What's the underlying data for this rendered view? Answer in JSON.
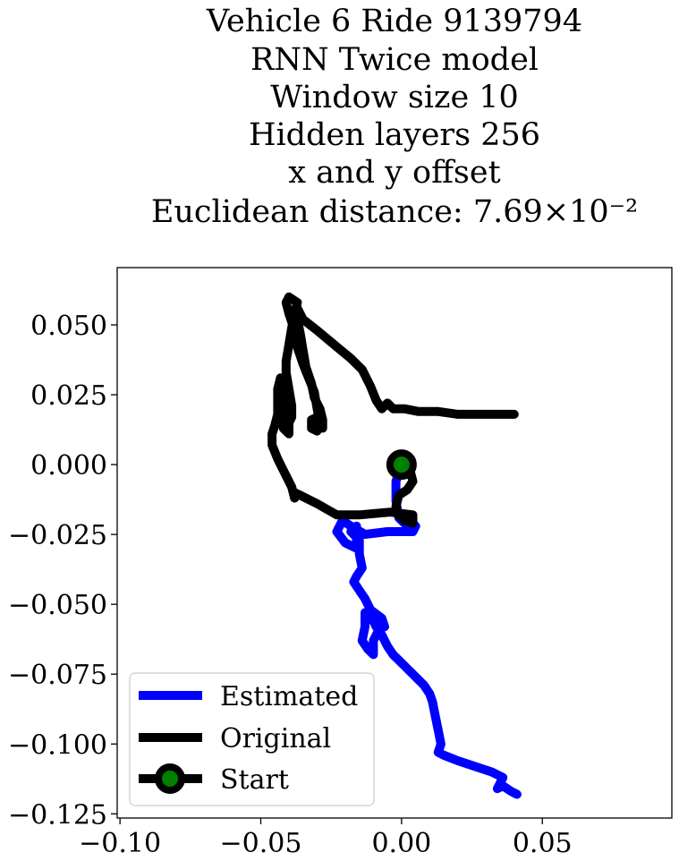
{
  "chart_data": {
    "type": "line",
    "title_lines": [
      "Vehicle 6 Ride 9139794",
      "RNN Twice model",
      "Window size 10",
      "Hidden layers 256",
      "x and y offset",
      "Euclidean distance: 7.69×10⁻²"
    ],
    "xlim": [
      -0.101,
      0.096
    ],
    "ylim": [
      -0.1265,
      0.0705
    ],
    "x_ticks": [
      -0.1,
      -0.05,
      0.0,
      0.05
    ],
    "x_tick_labels": [
      "−0.10",
      "−0.05",
      "0.00",
      "0.05"
    ],
    "y_ticks": [
      0.05,
      0.025,
      0.0,
      -0.025,
      -0.05,
      -0.075,
      -0.1,
      -0.125
    ],
    "y_tick_labels": [
      "0.050",
      "0.025",
      "0.000",
      "−0.025",
      "−0.050",
      "−0.075",
      "−0.100",
      "−0.125"
    ],
    "grid": false,
    "legend_position": "lower-left",
    "series": [
      {
        "name": "Estimated",
        "color": "#0000ff",
        "points": [
          [
            0.0,
            0.0
          ],
          [
            -0.002,
            -0.006
          ],
          [
            -0.002,
            -0.013
          ],
          [
            -0.001,
            -0.019
          ],
          [
            0.001,
            -0.021
          ],
          [
            0.004,
            -0.021
          ],
          [
            0.005,
            -0.022
          ],
          [
            0.004,
            -0.024
          ],
          [
            -0.005,
            -0.024
          ],
          [
            -0.013,
            -0.025
          ],
          [
            -0.018,
            -0.022
          ],
          [
            -0.021,
            -0.02
          ],
          [
            -0.023,
            -0.024
          ],
          [
            -0.02,
            -0.028
          ],
          [
            -0.016,
            -0.03
          ],
          [
            -0.016,
            -0.022
          ],
          [
            -0.018,
            -0.024
          ],
          [
            -0.015,
            -0.027
          ],
          [
            -0.015,
            -0.032
          ],
          [
            -0.014,
            -0.037
          ],
          [
            -0.016,
            -0.04
          ],
          [
            -0.017,
            -0.042
          ],
          [
            -0.015,
            -0.045
          ],
          [
            -0.013,
            -0.048
          ],
          [
            -0.011,
            -0.052
          ],
          [
            -0.007,
            -0.055
          ],
          [
            -0.006,
            -0.058
          ],
          [
            -0.008,
            -0.059
          ],
          [
            -0.01,
            -0.063
          ],
          [
            -0.01,
            -0.068
          ],
          [
            -0.012,
            -0.066
          ],
          [
            -0.014,
            -0.063
          ],
          [
            -0.013,
            -0.058
          ],
          [
            -0.013,
            -0.053
          ],
          [
            -0.011,
            -0.054
          ],
          [
            -0.009,
            -0.058
          ],
          [
            -0.007,
            -0.061
          ],
          [
            -0.005,
            -0.065
          ],
          [
            -0.003,
            -0.068
          ],
          [
            -0.001,
            -0.07
          ],
          [
            0.002,
            -0.073
          ],
          [
            0.005,
            -0.076
          ],
          [
            0.008,
            -0.079
          ],
          [
            0.01,
            -0.082
          ],
          [
            0.011,
            -0.085
          ],
          [
            0.012,
            -0.09
          ],
          [
            0.013,
            -0.095
          ],
          [
            0.014,
            -0.1
          ],
          [
            0.013,
            -0.103
          ],
          [
            0.015,
            -0.104
          ],
          [
            0.02,
            -0.106
          ],
          [
            0.026,
            -0.108
          ],
          [
            0.032,
            -0.11
          ],
          [
            0.036,
            -0.112
          ],
          [
            0.034,
            -0.116
          ],
          [
            0.036,
            -0.115
          ],
          [
            0.039,
            -0.117
          ],
          [
            0.041,
            -0.118
          ]
        ]
      },
      {
        "name": "Original",
        "color": "#000000",
        "points": [
          [
            0.0,
            0.0
          ],
          [
            0.003,
            -0.002
          ],
          [
            0.004,
            -0.006
          ],
          [
            0.002,
            -0.009
          ],
          [
            -0.001,
            -0.011
          ],
          [
            -0.002,
            -0.015
          ],
          [
            -0.001,
            -0.018
          ],
          [
            0.001,
            -0.02
          ],
          [
            0.004,
            -0.021
          ],
          [
            0.004,
            -0.018
          ],
          [
            -0.004,
            -0.017
          ],
          [
            -0.015,
            -0.018
          ],
          [
            -0.023,
            -0.018
          ],
          [
            -0.03,
            -0.014
          ],
          [
            -0.036,
            -0.011
          ],
          [
            -0.038,
            -0.01
          ],
          [
            -0.038,
            -0.012
          ],
          [
            -0.039,
            -0.008
          ],
          [
            -0.041,
            -0.004
          ],
          [
            -0.044,
            0.002
          ],
          [
            -0.046,
            0.007
          ],
          [
            -0.046,
            0.011
          ],
          [
            -0.045,
            0.014
          ],
          [
            -0.044,
            0.018
          ],
          [
            -0.044,
            0.022
          ],
          [
            -0.044,
            0.027
          ],
          [
            -0.043,
            0.031
          ],
          [
            -0.042,
            0.026
          ],
          [
            -0.041,
            0.021
          ],
          [
            -0.042,
            0.016
          ],
          [
            -0.042,
            0.013
          ],
          [
            -0.04,
            0.011
          ],
          [
            -0.04,
            0.015
          ],
          [
            -0.039,
            0.017
          ],
          [
            -0.039,
            0.021
          ],
          [
            -0.04,
            0.027
          ],
          [
            -0.041,
            0.033
          ],
          [
            -0.041,
            0.037
          ],
          [
            -0.04,
            0.043
          ],
          [
            -0.039,
            0.049
          ],
          [
            -0.038,
            0.054
          ],
          [
            -0.037,
            0.058
          ],
          [
            -0.04,
            0.06
          ],
          [
            -0.041,
            0.058
          ],
          [
            -0.04,
            0.054
          ],
          [
            -0.038,
            0.048
          ],
          [
            -0.037,
            0.042
          ],
          [
            -0.035,
            0.036
          ],
          [
            -0.033,
            0.031
          ],
          [
            -0.031,
            0.026
          ],
          [
            -0.03,
            0.02
          ],
          [
            -0.029,
            0.015
          ],
          [
            -0.03,
            0.012
          ],
          [
            -0.032,
            0.013
          ],
          [
            -0.032,
            0.016
          ],
          [
            -0.03,
            0.017
          ],
          [
            -0.029,
            0.014
          ],
          [
            -0.028,
            0.013
          ],
          [
            -0.028,
            0.016
          ],
          [
            -0.029,
            0.02
          ],
          [
            -0.031,
            0.024
          ],
          [
            -0.032,
            0.029
          ],
          [
            -0.034,
            0.035
          ],
          [
            -0.035,
            0.041
          ],
          [
            -0.036,
            0.047
          ],
          [
            -0.037,
            0.052
          ],
          [
            -0.037,
            0.056
          ],
          [
            -0.035,
            0.052
          ],
          [
            -0.03,
            0.048
          ],
          [
            -0.024,
            0.043
          ],
          [
            -0.018,
            0.038
          ],
          [
            -0.014,
            0.034
          ],
          [
            -0.011,
            0.028
          ],
          [
            -0.009,
            0.023
          ],
          [
            -0.007,
            0.02
          ],
          [
            -0.005,
            0.022
          ],
          [
            -0.004,
            0.021
          ],
          [
            -0.003,
            0.02
          ],
          [
            0.001,
            0.02
          ],
          [
            0.006,
            0.019
          ],
          [
            0.013,
            0.019
          ],
          [
            0.02,
            0.018
          ],
          [
            0.027,
            0.018
          ],
          [
            0.033,
            0.018
          ],
          [
            0.04,
            0.018
          ]
        ]
      },
      {
        "name": "Start",
        "marker": "circle",
        "marker_edge_color": "#000000",
        "marker_face_color": "#008000",
        "points": [
          [
            0.0,
            0.0
          ]
        ]
      }
    ]
  }
}
